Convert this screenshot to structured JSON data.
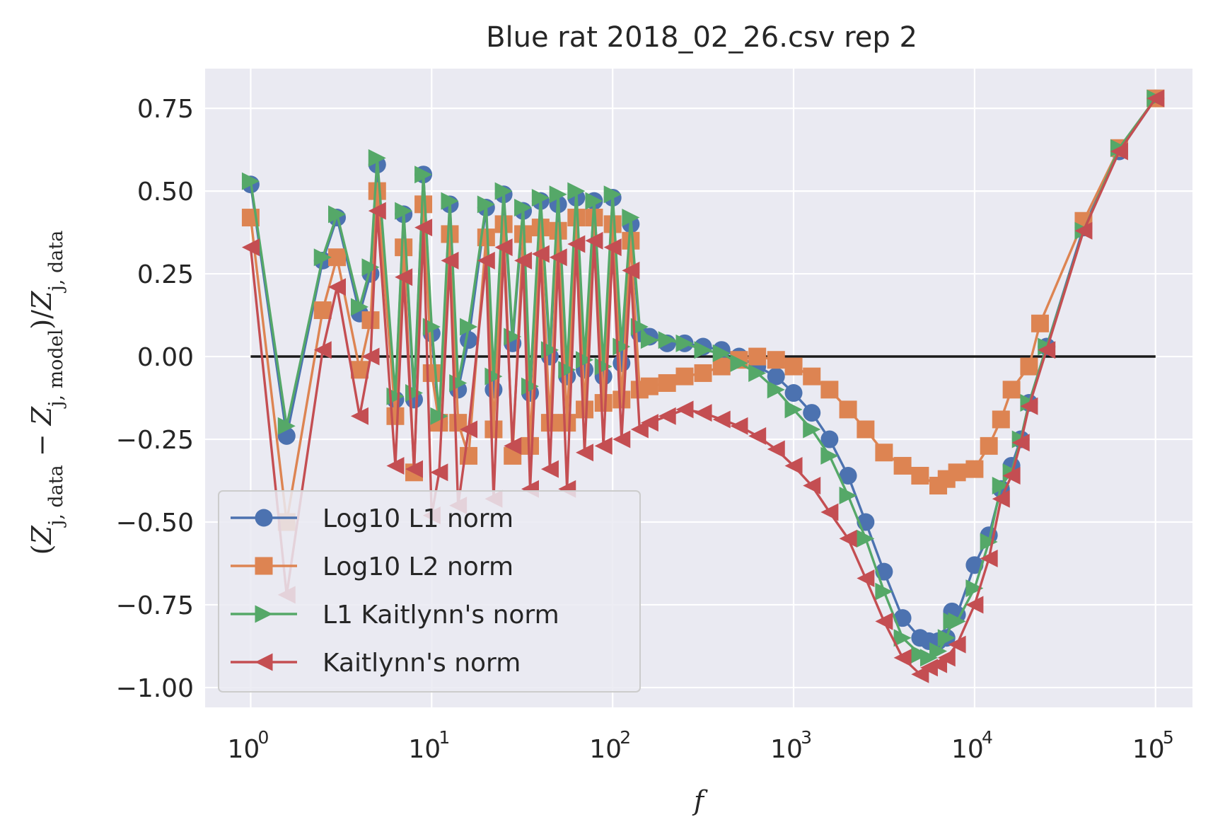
{
  "chart_data": {
    "type": "line",
    "title": "Blue rat 2018_02_26.csv rep 2",
    "xlabel": "f",
    "ylabel": "(Z_{j,data} − Z_{j,model})/Z_{j,data}",
    "ylabel_parts": [
      "(",
      "Z",
      "j, data",
      " − ",
      "Z",
      "j, model",
      ")/",
      "Z",
      "j, data"
    ],
    "xscale": "log",
    "xlim": [
      0.56,
      160000
    ],
    "ylim": [
      -1.06,
      0.87
    ],
    "x_ticks": [
      {
        "base": "10",
        "exp": "0"
      },
      {
        "base": "10",
        "exp": "1"
      },
      {
        "base": "10",
        "exp": "2"
      },
      {
        "base": "10",
        "exp": "3"
      },
      {
        "base": "10",
        "exp": "4"
      },
      {
        "base": "10",
        "exp": "5"
      }
    ],
    "y_ticks": [
      "−1.00",
      "−0.75",
      "−0.50",
      "−0.25",
      "0.00",
      "0.25",
      "0.50",
      "0.75"
    ],
    "grid": true,
    "legend_position": "lower-left",
    "reference_line": {
      "y": 0,
      "x_range": [
        1,
        100000
      ],
      "color": "#1a1a1a"
    },
    "series": [
      {
        "name": "Log10 L1 norm",
        "marker": "circle",
        "color": "#4c72b0",
        "points": [
          [
            1,
            0.52
          ],
          [
            1.58,
            -0.24
          ],
          [
            2.5,
            0.29
          ],
          [
            3.0,
            0.42
          ],
          [
            4.0,
            0.13
          ],
          [
            4.6,
            0.25
          ],
          [
            5.0,
            0.58
          ],
          [
            6.3,
            -0.13
          ],
          [
            7.0,
            0.43
          ],
          [
            8.0,
            -0.13
          ],
          [
            9.0,
            0.55
          ],
          [
            10,
            0.07
          ],
          [
            11,
            -0.2
          ],
          [
            12.6,
            0.46
          ],
          [
            14,
            -0.1
          ],
          [
            16,
            0.05
          ],
          [
            20,
            0.45
          ],
          [
            22,
            -0.1
          ],
          [
            25,
            0.49
          ],
          [
            28,
            0.04
          ],
          [
            32,
            0.44
          ],
          [
            35,
            -0.11
          ],
          [
            40,
            0.47
          ],
          [
            45,
            0.0
          ],
          [
            50,
            0.46
          ],
          [
            56,
            -0.06
          ],
          [
            63,
            0.48
          ],
          [
            70,
            -0.04
          ],
          [
            79,
            0.47
          ],
          [
            89,
            -0.06
          ],
          [
            100,
            0.48
          ],
          [
            112,
            -0.02
          ],
          [
            126,
            0.4
          ],
          [
            141,
            0.07
          ],
          [
            160,
            0.06
          ],
          [
            200,
            0.04
          ],
          [
            250,
            0.04
          ],
          [
            316,
            0.03
          ],
          [
            400,
            0.02
          ],
          [
            500,
            0.0
          ],
          [
            630,
            -0.03
          ],
          [
            800,
            -0.06
          ],
          [
            1000,
            -0.11
          ],
          [
            1260,
            -0.17
          ],
          [
            1580,
            -0.25
          ],
          [
            2000,
            -0.36
          ],
          [
            2500,
            -0.5
          ],
          [
            3160,
            -0.65
          ],
          [
            4000,
            -0.79
          ],
          [
            5000,
            -0.85
          ],
          [
            5600,
            -0.86
          ],
          [
            6300,
            -0.86
          ],
          [
            7000,
            -0.85
          ],
          [
            7500,
            -0.77
          ],
          [
            8000,
            -0.78
          ],
          [
            10000,
            -0.63
          ],
          [
            12000,
            -0.54
          ],
          [
            14000,
            -0.4
          ],
          [
            16000,
            -0.33
          ],
          [
            18000,
            -0.25
          ],
          [
            20000,
            -0.14
          ],
          [
            25000,
            0.03
          ],
          [
            40000,
            0.39
          ],
          [
            63000,
            0.62
          ],
          [
            100000,
            0.78
          ]
        ]
      },
      {
        "name": "Log10 L2 norm",
        "marker": "square",
        "color": "#dd8452",
        "points": [
          [
            1,
            0.42
          ],
          [
            1.58,
            -0.5
          ],
          [
            2.5,
            0.14
          ],
          [
            3.0,
            0.3
          ],
          [
            4.0,
            -0.04
          ],
          [
            4.6,
            0.11
          ],
          [
            5.0,
            0.5
          ],
          [
            6.3,
            -0.18
          ],
          [
            7.0,
            0.33
          ],
          [
            8.0,
            -0.35
          ],
          [
            9.0,
            0.46
          ],
          [
            10,
            -0.05
          ],
          [
            11,
            -0.2
          ],
          [
            12.6,
            0.37
          ],
          [
            14,
            -0.2
          ],
          [
            16,
            -0.3
          ],
          [
            20,
            0.36
          ],
          [
            22,
            -0.22
          ],
          [
            25,
            0.4
          ],
          [
            28,
            -0.3
          ],
          [
            32,
            0.37
          ],
          [
            35,
            -0.27
          ],
          [
            40,
            0.39
          ],
          [
            45,
            -0.2
          ],
          [
            50,
            0.38
          ],
          [
            56,
            -0.2
          ],
          [
            63,
            0.42
          ],
          [
            70,
            -0.16
          ],
          [
            79,
            0.42
          ],
          [
            89,
            -0.14
          ],
          [
            100,
            0.4
          ],
          [
            112,
            -0.13
          ],
          [
            126,
            0.35
          ],
          [
            141,
            -0.1
          ],
          [
            160,
            -0.09
          ],
          [
            200,
            -0.08
          ],
          [
            250,
            -0.06
          ],
          [
            316,
            -0.05
          ],
          [
            400,
            -0.03
          ],
          [
            500,
            -0.01
          ],
          [
            630,
            0.0
          ],
          [
            800,
            -0.01
          ],
          [
            1000,
            -0.03
          ],
          [
            1260,
            -0.06
          ],
          [
            1580,
            -0.1
          ],
          [
            2000,
            -0.16
          ],
          [
            2500,
            -0.22
          ],
          [
            3160,
            -0.29
          ],
          [
            4000,
            -0.33
          ],
          [
            5000,
            -0.36
          ],
          [
            6300,
            -0.39
          ],
          [
            7000,
            -0.37
          ],
          [
            8000,
            -0.35
          ],
          [
            10000,
            -0.34
          ],
          [
            12000,
            -0.27
          ],
          [
            14000,
            -0.19
          ],
          [
            16000,
            -0.1
          ],
          [
            20000,
            -0.03
          ],
          [
            23000,
            0.1
          ],
          [
            40000,
            0.41
          ],
          [
            63000,
            0.63
          ],
          [
            100000,
            0.78
          ]
        ]
      },
      {
        "name": "L1 Kaitlynn's norm",
        "marker": "triangle-right",
        "color": "#55a868",
        "points": [
          [
            1,
            0.53
          ],
          [
            1.58,
            -0.21
          ],
          [
            2.5,
            0.3
          ],
          [
            3.0,
            0.43
          ],
          [
            4.0,
            0.15
          ],
          [
            4.6,
            0.27
          ],
          [
            5.0,
            0.6
          ],
          [
            6.3,
            -0.12
          ],
          [
            7.0,
            0.44
          ],
          [
            8.0,
            -0.11
          ],
          [
            9.0,
            0.55
          ],
          [
            10,
            0.09
          ],
          [
            11,
            -0.18
          ],
          [
            12.6,
            0.47
          ],
          [
            14,
            -0.08
          ],
          [
            16,
            0.09
          ],
          [
            20,
            0.46
          ],
          [
            22,
            -0.06
          ],
          [
            25,
            0.5
          ],
          [
            28,
            0.06
          ],
          [
            32,
            0.45
          ],
          [
            35,
            -0.09
          ],
          [
            40,
            0.48
          ],
          [
            45,
            0.02
          ],
          [
            50,
            0.49
          ],
          [
            56,
            -0.04
          ],
          [
            63,
            0.5
          ],
          [
            70,
            -0.01
          ],
          [
            79,
            0.47
          ],
          [
            89,
            -0.03
          ],
          [
            100,
            0.49
          ],
          [
            112,
            0.03
          ],
          [
            126,
            0.42
          ],
          [
            141,
            0.09
          ],
          [
            160,
            0.05
          ],
          [
            200,
            0.05
          ],
          [
            250,
            0.04
          ],
          [
            316,
            0.02
          ],
          [
            400,
            0.01
          ],
          [
            500,
            -0.02
          ],
          [
            630,
            -0.05
          ],
          [
            800,
            -0.1
          ],
          [
            1000,
            -0.16
          ],
          [
            1260,
            -0.22
          ],
          [
            1580,
            -0.3
          ],
          [
            2000,
            -0.42
          ],
          [
            2500,
            -0.55
          ],
          [
            3160,
            -0.71
          ],
          [
            4000,
            -0.85
          ],
          [
            5000,
            -0.9
          ],
          [
            5600,
            -0.91
          ],
          [
            6300,
            -0.89
          ],
          [
            7000,
            -0.85
          ],
          [
            7500,
            -0.8
          ],
          [
            8000,
            -0.8
          ],
          [
            10000,
            -0.7
          ],
          [
            12000,
            -0.56
          ],
          [
            14000,
            -0.39
          ],
          [
            16000,
            -0.35
          ],
          [
            18000,
            -0.25
          ],
          [
            20000,
            -0.14
          ],
          [
            25000,
            0.03
          ],
          [
            40000,
            0.38
          ],
          [
            63000,
            0.63
          ],
          [
            100000,
            0.78
          ]
        ]
      },
      {
        "name": "Kaitlynn's norm",
        "marker": "triangle-left",
        "color": "#c44e52",
        "points": [
          [
            1,
            0.33
          ],
          [
            1.58,
            -0.72
          ],
          [
            2.5,
            0.02
          ],
          [
            3.0,
            0.21
          ],
          [
            4.0,
            -0.18
          ],
          [
            4.6,
            0.0
          ],
          [
            5.0,
            0.44
          ],
          [
            6.3,
            -0.33
          ],
          [
            7.0,
            0.24
          ],
          [
            8.0,
            -0.34
          ],
          [
            9.0,
            0.39
          ],
          [
            10,
            -0.48
          ],
          [
            11,
            -0.35
          ],
          [
            12.6,
            0.29
          ],
          [
            14,
            -0.45
          ],
          [
            16,
            -0.22
          ],
          [
            20,
            0.29
          ],
          [
            22,
            -0.43
          ],
          [
            25,
            0.33
          ],
          [
            28,
            -0.27
          ],
          [
            32,
            0.29
          ],
          [
            35,
            -0.4
          ],
          [
            40,
            0.31
          ],
          [
            45,
            -0.34
          ],
          [
            50,
            0.3
          ],
          [
            56,
            -0.4
          ],
          [
            63,
            0.34
          ],
          [
            70,
            -0.29
          ],
          [
            79,
            0.35
          ],
          [
            89,
            -0.27
          ],
          [
            100,
            0.33
          ],
          [
            112,
            -0.25
          ],
          [
            126,
            0.26
          ],
          [
            141,
            -0.22
          ],
          [
            160,
            -0.2
          ],
          [
            200,
            -0.18
          ],
          [
            250,
            -0.16
          ],
          [
            316,
            -0.17
          ],
          [
            400,
            -0.19
          ],
          [
            500,
            -0.21
          ],
          [
            630,
            -0.24
          ],
          [
            800,
            -0.28
          ],
          [
            1000,
            -0.33
          ],
          [
            1260,
            -0.39
          ],
          [
            1580,
            -0.47
          ],
          [
            2000,
            -0.55
          ],
          [
            2500,
            -0.67
          ],
          [
            3160,
            -0.8
          ],
          [
            4000,
            -0.91
          ],
          [
            5000,
            -0.96
          ],
          [
            5600,
            -0.94
          ],
          [
            6300,
            -0.93
          ],
          [
            7000,
            -0.91
          ],
          [
            8000,
            -0.87
          ],
          [
            10000,
            -0.75
          ],
          [
            12000,
            -0.61
          ],
          [
            14000,
            -0.43
          ],
          [
            16000,
            -0.36
          ],
          [
            18000,
            -0.26
          ],
          [
            20000,
            -0.15
          ],
          [
            25000,
            0.02
          ],
          [
            40000,
            0.38
          ],
          [
            63000,
            0.62
          ],
          [
            100000,
            0.78
          ]
        ]
      }
    ]
  }
}
